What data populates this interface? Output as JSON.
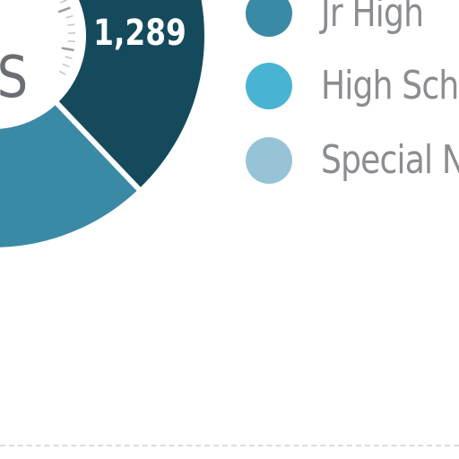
{
  "chart_data": {
    "type": "pie",
    "style": "donut",
    "center_label_fragment": "S",
    "segments": [
      {
        "name": "",
        "value": 1289,
        "value_label": "1,289",
        "color": "#154a5c"
      },
      {
        "name": "Jr High",
        "value_label": "",
        "color": "#3a8aa6"
      },
      {
        "name": "High Scho",
        "value_label": "",
        "color": "#49b3d3"
      },
      {
        "name": "Special N",
        "value_label": "",
        "color": "#96c4d6"
      }
    ],
    "legend": {
      "placement": "right",
      "items": [
        {
          "label": "Jr High",
          "color": "#3a8aa6"
        },
        {
          "label": "High Scho",
          "color": "#49b3d3"
        },
        {
          "label": "Special N",
          "color": "#96c4d6"
        }
      ]
    }
  }
}
